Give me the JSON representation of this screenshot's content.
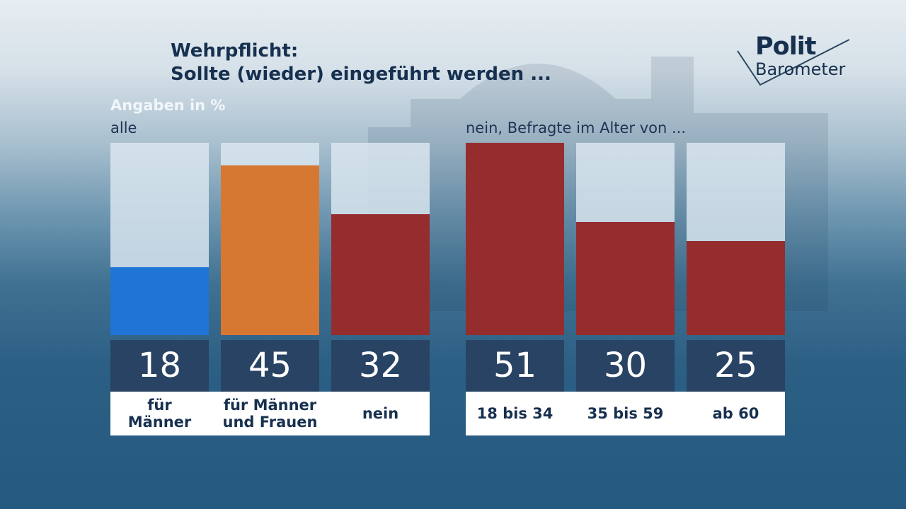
{
  "header": {
    "title_line1": "Wehrpflicht:",
    "title_line2": "Sollte (wieder) eingeführt werden ...",
    "unit_note": "Angaben in %"
  },
  "logo": {
    "line1": "Polit",
    "line2": "Barometer"
  },
  "chart_data": [
    {
      "type": "bar",
      "group_label": "alle",
      "categories": [
        "für\nMänner",
        "für Männer\nund Frauen",
        "nein"
      ],
      "values": [
        18,
        45,
        32
      ],
      "colors": [
        "#2074d6",
        "#d67832",
        "#952d2f"
      ],
      "ylim": [
        0,
        51
      ]
    },
    {
      "type": "bar",
      "group_label": "nein, Befragte im Alter von ...",
      "categories": [
        "18 bis 34",
        "35 bis 59",
        "ab 60"
      ],
      "values": [
        51,
        30,
        25
      ],
      "colors": [
        "#952d2f",
        "#952d2f",
        "#952d2f"
      ],
      "ylim": [
        0,
        51
      ]
    }
  ]
}
